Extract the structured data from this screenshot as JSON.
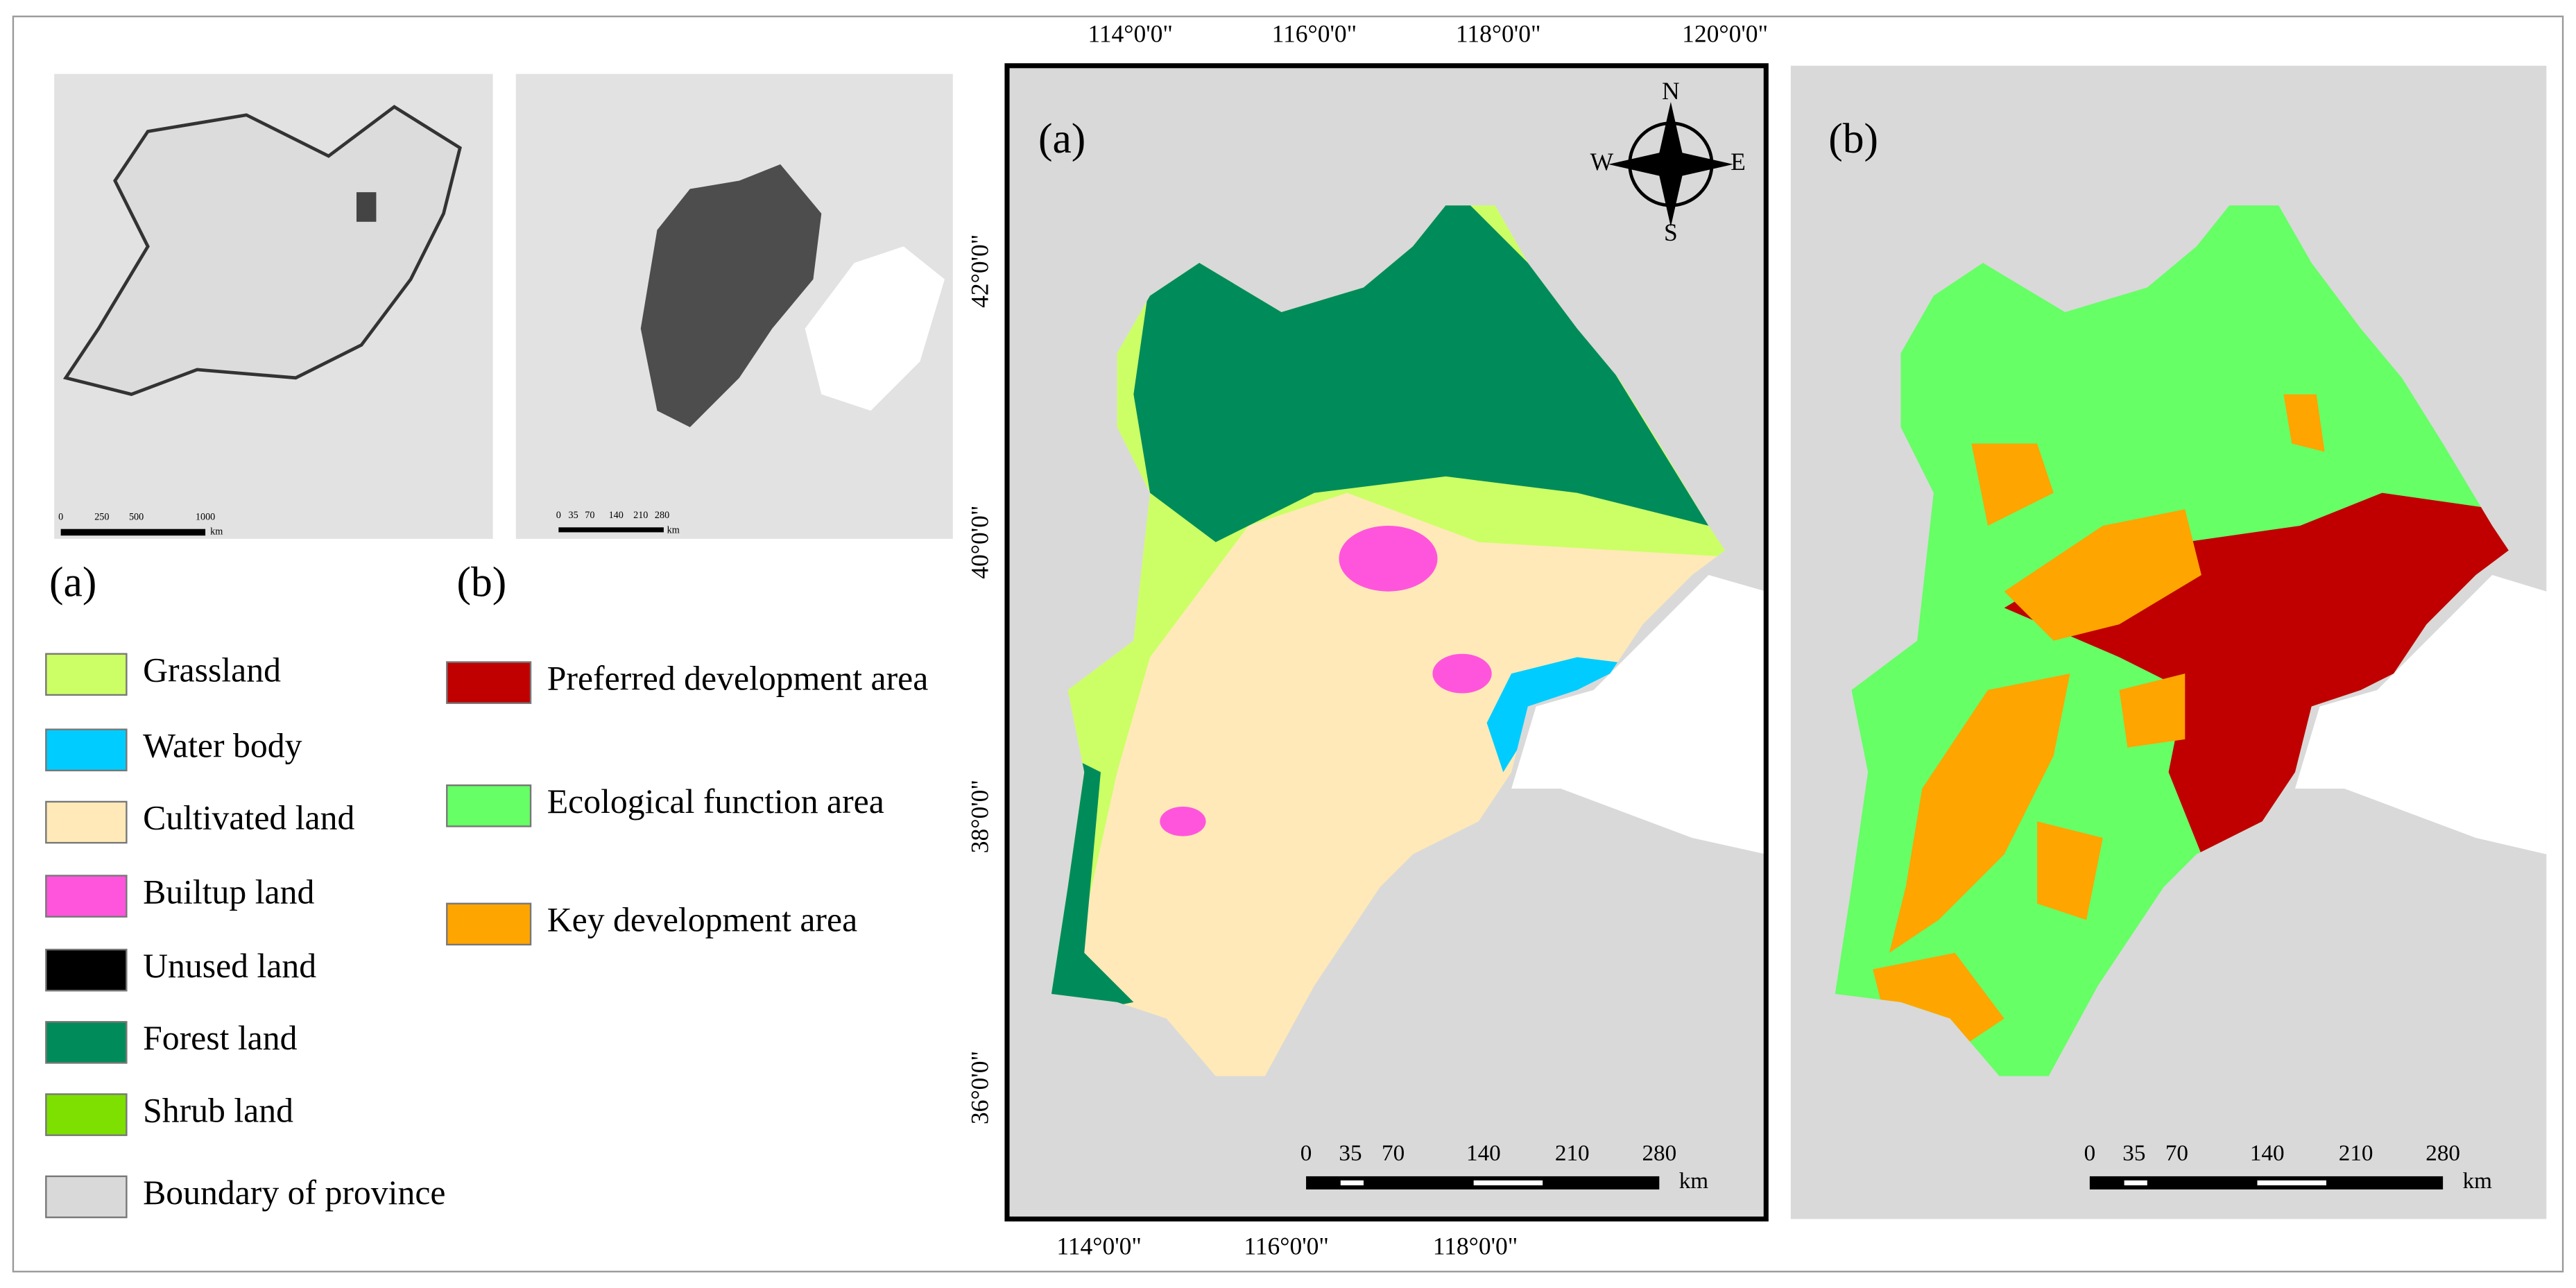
{
  "inset_a": {
    "label": "(a)",
    "scale": [
      "0",
      "250",
      "500",
      "1000"
    ],
    "unit": "km"
  },
  "inset_b": {
    "label": "(b)",
    "scale": [
      "0",
      "35",
      "70",
      "140",
      "210",
      "280"
    ],
    "unit": "km"
  },
  "map_a": {
    "label": "(a)",
    "top_ticks": [
      "114°0'0\"",
      "116°0'0\"",
      "118°0'0\"",
      "120°0'0\""
    ],
    "bottom_ticks": [
      "114°0'0\"",
      "116°0'0\"",
      "118°0'0\""
    ],
    "left_ticks": [
      "42°0'0\"",
      "40°0'0\"",
      "38°0'0\"",
      "36°0'0\""
    ],
    "compass": {
      "north": "N",
      "south": "S",
      "west": "W",
      "east": "E"
    },
    "scale": [
      "0",
      "35",
      "70",
      "140",
      "210",
      "280"
    ],
    "unit": "km"
  },
  "map_b": {
    "label": "(b)",
    "scale": [
      "0",
      "35",
      "70",
      "140",
      "210",
      "280"
    ],
    "unit": "km"
  },
  "legend_a": [
    {
      "label": "Grassland",
      "color": "#ccff66"
    },
    {
      "label": "Water body",
      "color": "#00ccff"
    },
    {
      "label": "Cultivated land",
      "color": "#ffe9b8"
    },
    {
      "label": "Builtup land",
      "color": "#ff55dd"
    },
    {
      "label": "Unused land",
      "color": "#000000"
    },
    {
      "label": "Forest land",
      "color": "#008c5a"
    },
    {
      "label": "Shrub land",
      "color": "#7de000"
    },
    {
      "label": "Boundary of province",
      "color": "#d9d9d9"
    }
  ],
  "legend_b": [
    {
      "label": "Preferred development area",
      "color": "#c00000"
    },
    {
      "label": "Ecological function area",
      "color": "#66ff66"
    },
    {
      "label": "Key development area",
      "color": "#ffa500"
    }
  ]
}
